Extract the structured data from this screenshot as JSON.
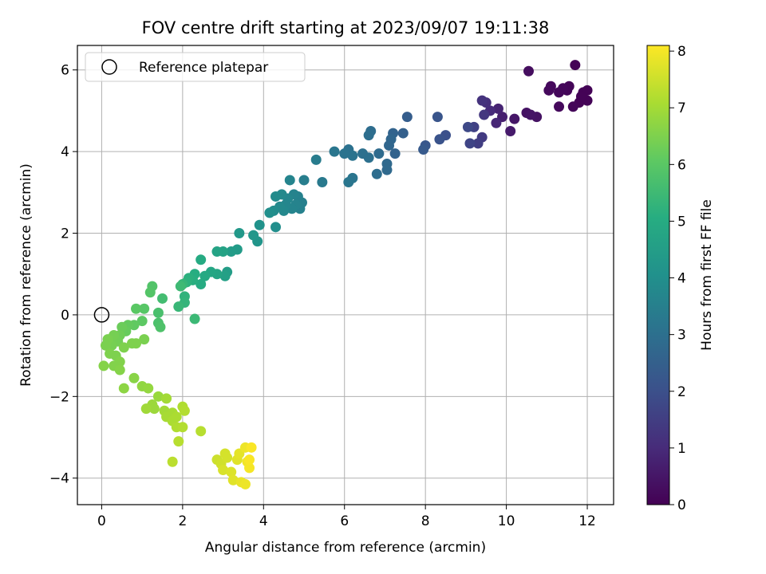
{
  "chart_data": {
    "type": "scatter",
    "title": "FOV centre drift starting at 2023/09/07 19:11:38",
    "xlabel": "Angular distance from reference (arcmin)",
    "ylabel": "Rotation from reference (arcmin)",
    "xlim": [
      -0.6,
      12.65
    ],
    "ylim": [
      -4.65,
      6.6
    ],
    "xticks": [
      0,
      2,
      4,
      6,
      8,
      10,
      12
    ],
    "yticks": [
      -4,
      -2,
      0,
      2,
      4,
      6
    ],
    "grid": true,
    "legend": {
      "placement": "top-left",
      "entries": [
        "Reference platepar"
      ]
    },
    "reference_point": {
      "x": 0,
      "y": 0
    },
    "colorbar": {
      "label": "Hours from first FF file",
      "colormap": "viridis",
      "range": [
        0,
        8.1
      ],
      "ticks": [
        0,
        1,
        2,
        3,
        4,
        5,
        6,
        7,
        8
      ]
    },
    "points": [
      {
        "x": 11.7,
        "y": 6.12,
        "c": 0.05
      },
      {
        "x": 11.8,
        "y": 5.2,
        "c": 0.05
      },
      {
        "x": 11.9,
        "y": 5.45,
        "c": 0.05
      },
      {
        "x": 12.0,
        "y": 5.5,
        "c": 0.05
      },
      {
        "x": 12.0,
        "y": 5.25,
        "c": 0.05
      },
      {
        "x": 11.85,
        "y": 5.35,
        "c": 0.05
      },
      {
        "x": 11.65,
        "y": 5.1,
        "c": 0.1
      },
      {
        "x": 11.5,
        "y": 5.5,
        "c": 0.1
      },
      {
        "x": 11.55,
        "y": 5.6,
        "c": 0.1
      },
      {
        "x": 11.4,
        "y": 5.55,
        "c": 0.15
      },
      {
        "x": 11.3,
        "y": 5.45,
        "c": 0.15
      },
      {
        "x": 11.3,
        "y": 5.1,
        "c": 0.2
      },
      {
        "x": 11.1,
        "y": 5.6,
        "c": 0.2
      },
      {
        "x": 11.05,
        "y": 5.5,
        "c": 0.2
      },
      {
        "x": 10.55,
        "y": 5.97,
        "c": 0.3
      },
      {
        "x": 10.5,
        "y": 4.95,
        "c": 0.4
      },
      {
        "x": 10.75,
        "y": 4.85,
        "c": 0.4
      },
      {
        "x": 10.6,
        "y": 4.9,
        "c": 0.45
      },
      {
        "x": 10.2,
        "y": 4.8,
        "c": 0.5
      },
      {
        "x": 10.1,
        "y": 4.5,
        "c": 0.6
      },
      {
        "x": 9.9,
        "y": 4.85,
        "c": 0.7
      },
      {
        "x": 9.8,
        "y": 5.05,
        "c": 0.8
      },
      {
        "x": 9.75,
        "y": 4.7,
        "c": 0.9
      },
      {
        "x": 9.6,
        "y": 5.0,
        "c": 1.0
      },
      {
        "x": 9.5,
        "y": 5.2,
        "c": 1.1
      },
      {
        "x": 9.4,
        "y": 5.25,
        "c": 1.2
      },
      {
        "x": 9.45,
        "y": 4.9,
        "c": 1.3
      },
      {
        "x": 9.4,
        "y": 4.35,
        "c": 1.4
      },
      {
        "x": 9.3,
        "y": 4.2,
        "c": 1.5
      },
      {
        "x": 9.2,
        "y": 4.6,
        "c": 1.6
      },
      {
        "x": 9.1,
        "y": 4.2,
        "c": 1.7
      },
      {
        "x": 9.05,
        "y": 4.6,
        "c": 1.8
      },
      {
        "x": 8.5,
        "y": 4.4,
        "c": 2.0
      },
      {
        "x": 8.35,
        "y": 4.3,
        "c": 2.1
      },
      {
        "x": 8.3,
        "y": 4.85,
        "c": 2.15
      },
      {
        "x": 8.0,
        "y": 4.15,
        "c": 2.2
      },
      {
        "x": 7.95,
        "y": 4.05,
        "c": 2.3
      },
      {
        "x": 7.55,
        "y": 4.85,
        "c": 2.4
      },
      {
        "x": 7.45,
        "y": 4.45,
        "c": 2.5
      },
      {
        "x": 7.25,
        "y": 3.95,
        "c": 2.6
      },
      {
        "x": 7.2,
        "y": 4.45,
        "c": 2.6
      },
      {
        "x": 7.15,
        "y": 4.3,
        "c": 2.7
      },
      {
        "x": 7.1,
        "y": 4.15,
        "c": 2.7
      },
      {
        "x": 7.05,
        "y": 3.7,
        "c": 2.8
      },
      {
        "x": 7.05,
        "y": 3.55,
        "c": 2.8
      },
      {
        "x": 6.85,
        "y": 3.95,
        "c": 2.85
      },
      {
        "x": 6.8,
        "y": 3.45,
        "c": 2.9
      },
      {
        "x": 6.65,
        "y": 4.5,
        "c": 2.9
      },
      {
        "x": 6.6,
        "y": 4.4,
        "c": 2.95
      },
      {
        "x": 6.6,
        "y": 3.85,
        "c": 3.0
      },
      {
        "x": 6.45,
        "y": 3.95,
        "c": 3.0
      },
      {
        "x": 6.1,
        "y": 4.05,
        "c": 3.05
      },
      {
        "x": 6.2,
        "y": 3.9,
        "c": 3.1
      },
      {
        "x": 6.0,
        "y": 3.95,
        "c": 3.1
      },
      {
        "x": 6.2,
        "y": 3.35,
        "c": 3.15
      },
      {
        "x": 6.1,
        "y": 3.25,
        "c": 3.2
      },
      {
        "x": 5.75,
        "y": 4.0,
        "c": 3.2
      },
      {
        "x": 5.45,
        "y": 3.25,
        "c": 3.3
      },
      {
        "x": 5.3,
        "y": 3.8,
        "c": 3.4
      },
      {
        "x": 5.0,
        "y": 3.3,
        "c": 3.45
      },
      {
        "x": 4.95,
        "y": 2.75,
        "c": 3.5
      },
      {
        "x": 4.9,
        "y": 2.6,
        "c": 3.55
      },
      {
        "x": 4.85,
        "y": 2.9,
        "c": 3.55
      },
      {
        "x": 4.8,
        "y": 2.7,
        "c": 3.6
      },
      {
        "x": 4.75,
        "y": 2.95,
        "c": 3.6
      },
      {
        "x": 4.7,
        "y": 2.6,
        "c": 3.65
      },
      {
        "x": 4.65,
        "y": 3.3,
        "c": 3.65
      },
      {
        "x": 4.6,
        "y": 2.85,
        "c": 3.7
      },
      {
        "x": 4.55,
        "y": 2.7,
        "c": 3.7
      },
      {
        "x": 4.5,
        "y": 2.55,
        "c": 3.75
      },
      {
        "x": 4.45,
        "y": 2.95,
        "c": 3.8
      },
      {
        "x": 4.4,
        "y": 2.65,
        "c": 3.8
      },
      {
        "x": 4.3,
        "y": 2.9,
        "c": 3.85
      },
      {
        "x": 4.25,
        "y": 2.55,
        "c": 3.9
      },
      {
        "x": 4.3,
        "y": 2.15,
        "c": 3.95
      },
      {
        "x": 4.15,
        "y": 2.5,
        "c": 4.0
      },
      {
        "x": 3.9,
        "y": 2.2,
        "c": 4.1
      },
      {
        "x": 3.85,
        "y": 1.8,
        "c": 4.2
      },
      {
        "x": 3.75,
        "y": 1.95,
        "c": 4.25
      },
      {
        "x": 3.4,
        "y": 2.0,
        "c": 4.3
      },
      {
        "x": 3.35,
        "y": 1.6,
        "c": 4.4
      },
      {
        "x": 3.2,
        "y": 1.55,
        "c": 4.45
      },
      {
        "x": 3.1,
        "y": 1.05,
        "c": 4.5
      },
      {
        "x": 3.05,
        "y": 0.95,
        "c": 4.6
      },
      {
        "x": 3.0,
        "y": 1.55,
        "c": 4.65
      },
      {
        "x": 2.85,
        "y": 1.55,
        "c": 4.7
      },
      {
        "x": 2.85,
        "y": 1.0,
        "c": 4.75
      },
      {
        "x": 2.7,
        "y": 1.05,
        "c": 4.8
      },
      {
        "x": 2.55,
        "y": 0.95,
        "c": 4.9
      },
      {
        "x": 2.45,
        "y": 1.35,
        "c": 4.95
      },
      {
        "x": 2.45,
        "y": 0.75,
        "c": 5.0
      },
      {
        "x": 2.3,
        "y": 1.0,
        "c": 5.05
      },
      {
        "x": 2.25,
        "y": 0.85,
        "c": 5.1
      },
      {
        "x": 2.15,
        "y": 0.9,
        "c": 5.15
      },
      {
        "x": 2.1,
        "y": 0.8,
        "c": 5.2
      },
      {
        "x": 2.05,
        "y": 0.45,
        "c": 5.25
      },
      {
        "x": 2.05,
        "y": 0.3,
        "c": 5.3
      },
      {
        "x": 2.0,
        "y": 0.75,
        "c": 5.35
      },
      {
        "x": 1.9,
        "y": 0.2,
        "c": 5.4
      },
      {
        "x": 2.3,
        "y": -0.1,
        "c": 5.45
      },
      {
        "x": 1.95,
        "y": 0.7,
        "c": 5.5
      },
      {
        "x": 1.5,
        "y": 0.4,
        "c": 5.6
      },
      {
        "x": 1.4,
        "y": 0.05,
        "c": 5.7
      },
      {
        "x": 1.4,
        "y": -0.2,
        "c": 5.75
      },
      {
        "x": 1.45,
        "y": -0.3,
        "c": 5.8
      },
      {
        "x": 1.25,
        "y": 0.7,
        "c": 5.85
      },
      {
        "x": 1.2,
        "y": 0.55,
        "c": 5.9
      },
      {
        "x": 1.05,
        "y": 0.15,
        "c": 5.95
      },
      {
        "x": 0.85,
        "y": 0.15,
        "c": 6.0
      },
      {
        "x": 1.0,
        "y": -0.15,
        "c": 6.05
      },
      {
        "x": 0.8,
        "y": -0.25,
        "c": 6.1
      },
      {
        "x": 0.65,
        "y": -0.25,
        "c": 6.15
      },
      {
        "x": 0.6,
        "y": -0.4,
        "c": 6.2
      },
      {
        "x": 0.5,
        "y": -0.3,
        "c": 6.25
      },
      {
        "x": 0.45,
        "y": -0.5,
        "c": 6.3
      },
      {
        "x": 0.4,
        "y": -0.65,
        "c": 6.35
      },
      {
        "x": 0.3,
        "y": -0.5,
        "c": 6.4
      },
      {
        "x": 0.25,
        "y": -0.75,
        "c": 6.4
      },
      {
        "x": 0.15,
        "y": -0.6,
        "c": 6.45
      },
      {
        "x": 0.1,
        "y": -0.75,
        "c": 6.45
      },
      {
        "x": 0.2,
        "y": -0.95,
        "c": 6.5
      },
      {
        "x": 0.35,
        "y": -1.0,
        "c": 6.5
      },
      {
        "x": 0.45,
        "y": -1.15,
        "c": 6.55
      },
      {
        "x": 0.3,
        "y": -1.25,
        "c": 6.55
      },
      {
        "x": 0.05,
        "y": -1.25,
        "c": 6.6
      },
      {
        "x": 0.45,
        "y": -1.35,
        "c": 6.6
      },
      {
        "x": 1.05,
        "y": -0.6,
        "c": 6.45
      },
      {
        "x": 0.85,
        "y": -0.7,
        "c": 6.5
      },
      {
        "x": 0.75,
        "y": -0.7,
        "c": 6.5
      },
      {
        "x": 0.55,
        "y": -0.8,
        "c": 6.5
      },
      {
        "x": 0.8,
        "y": -1.55,
        "c": 6.65
      },
      {
        "x": 0.55,
        "y": -1.8,
        "c": 6.7
      },
      {
        "x": 1.0,
        "y": -1.75,
        "c": 6.75
      },
      {
        "x": 1.15,
        "y": -1.8,
        "c": 6.8
      },
      {
        "x": 1.4,
        "y": -2.0,
        "c": 6.85
      },
      {
        "x": 1.25,
        "y": -2.2,
        "c": 6.9
      },
      {
        "x": 1.3,
        "y": -2.3,
        "c": 6.9
      },
      {
        "x": 1.1,
        "y": -2.3,
        "c": 6.95
      },
      {
        "x": 1.6,
        "y": -2.05,
        "c": 7.0
      },
      {
        "x": 1.55,
        "y": -2.35,
        "c": 7.0
      },
      {
        "x": 1.6,
        "y": -2.5,
        "c": 7.05
      },
      {
        "x": 1.75,
        "y": -2.4,
        "c": 7.05
      },
      {
        "x": 1.75,
        "y": -2.6,
        "c": 7.1
      },
      {
        "x": 1.85,
        "y": -2.5,
        "c": 7.1
      },
      {
        "x": 1.85,
        "y": -2.75,
        "c": 7.15
      },
      {
        "x": 2.0,
        "y": -2.25,
        "c": 7.15
      },
      {
        "x": 2.05,
        "y": -2.35,
        "c": 7.2
      },
      {
        "x": 2.0,
        "y": -2.75,
        "c": 7.2
      },
      {
        "x": 1.9,
        "y": -3.1,
        "c": 7.25
      },
      {
        "x": 2.45,
        "y": -2.85,
        "c": 7.25
      },
      {
        "x": 1.75,
        "y": -3.6,
        "c": 7.3
      },
      {
        "x": 2.85,
        "y": -3.55,
        "c": 7.5
      },
      {
        "x": 2.95,
        "y": -3.65,
        "c": 7.55
      },
      {
        "x": 3.05,
        "y": -3.4,
        "c": 7.6
      },
      {
        "x": 3.1,
        "y": -3.5,
        "c": 7.6
      },
      {
        "x": 3.0,
        "y": -3.8,
        "c": 7.65
      },
      {
        "x": 3.2,
        "y": -3.85,
        "c": 7.7
      },
      {
        "x": 3.25,
        "y": -4.05,
        "c": 7.75
      },
      {
        "x": 3.35,
        "y": -3.55,
        "c": 7.75
      },
      {
        "x": 3.4,
        "y": -3.4,
        "c": 7.8
      },
      {
        "x": 3.45,
        "y": -4.1,
        "c": 7.85
      },
      {
        "x": 3.55,
        "y": -4.15,
        "c": 7.9
      },
      {
        "x": 3.55,
        "y": -3.25,
        "c": 7.9
      },
      {
        "x": 3.6,
        "y": -3.6,
        "c": 7.95
      },
      {
        "x": 3.65,
        "y": -3.75,
        "c": 8.0
      },
      {
        "x": 3.7,
        "y": -3.25,
        "c": 8.05
      },
      {
        "x": 3.65,
        "y": -3.55,
        "c": 8.05
      }
    ]
  }
}
